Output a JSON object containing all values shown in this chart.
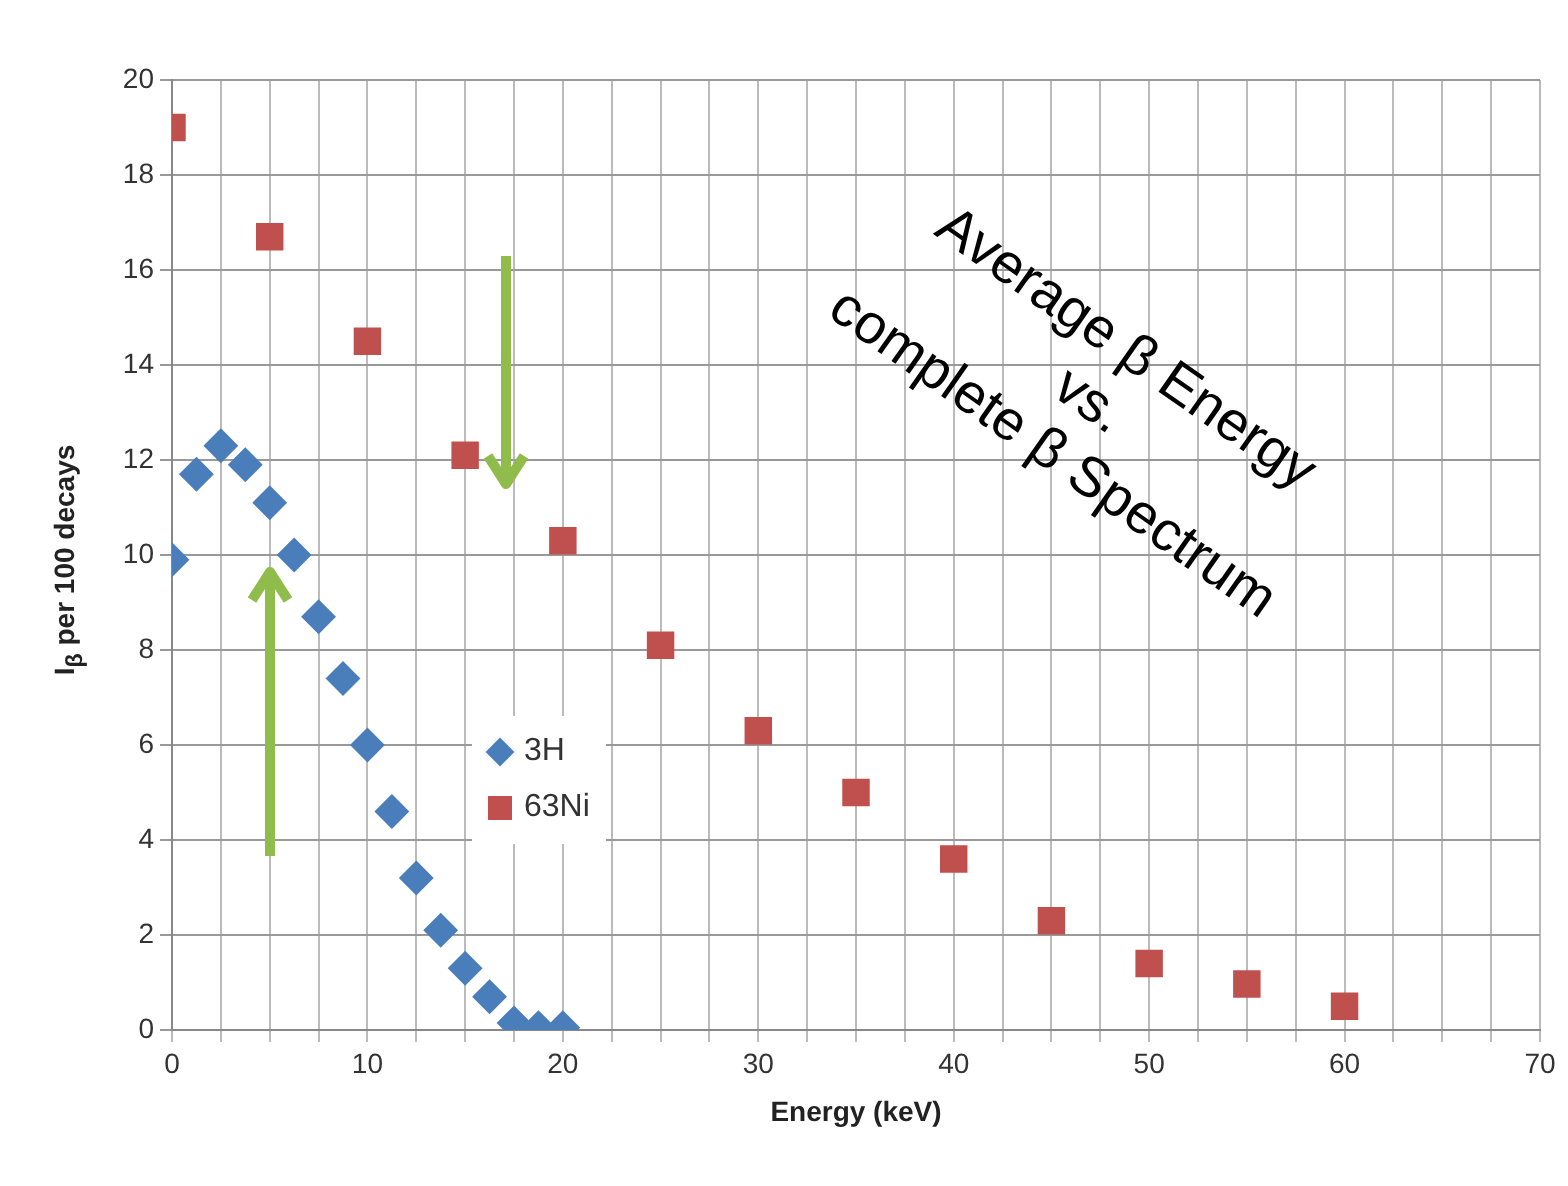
{
  "chart_data": {
    "type": "scatter",
    "xlabel": "Energy (keV)",
    "ylabel": "I$_{β}$ per 100 decays",
    "annotations": [
      "Average β Energy",
      "vs.",
      "complete β Spectrum"
    ],
    "xlim": [
      0,
      70
    ],
    "ylim": [
      0,
      20
    ],
    "xticks": [
      0,
      {
        "value": 2.5,
        "label": null
      },
      {
        "value": 5,
        "label": null
      },
      {
        "value": 7.5,
        "label": null
      },
      10,
      {
        "value": 12.5,
        "label": null
      },
      {
        "value": 15,
        "label": null
      },
      {
        "value": 17.5,
        "label": null
      },
      20,
      {
        "value": 22.5,
        "label": null
      },
      {
        "value": 25,
        "label": null
      },
      {
        "value": 27.5,
        "label": null
      },
      30,
      {
        "value": 32.5,
        "label": null
      },
      {
        "value": 35,
        "label": null
      },
      {
        "value": 37.5,
        "label": null
      },
      40,
      {
        "value": 42.5,
        "label": null
      },
      {
        "value": 45,
        "label": null
      },
      {
        "value": 47.5,
        "label": null
      },
      50,
      {
        "value": 52.5,
        "label": null
      },
      {
        "value": 55,
        "label": null
      },
      {
        "value": 57.5,
        "label": null
      },
      60,
      {
        "value": 62.5,
        "label": null
      },
      {
        "value": 65,
        "label": null
      },
      {
        "value": 67.5,
        "label": null
      },
      70
    ],
    "yticks": [
      0,
      2,
      4,
      6,
      8,
      10,
      12,
      14,
      16,
      18,
      20
    ],
    "grid": true,
    "legend": "left",
    "series": [
      {
        "name": "3H",
        "color": "#4a7ebb",
        "marker": "diamond",
        "x": [
          0,
          1.25,
          2.5,
          3.75,
          5,
          6.25,
          7.5,
          8.75,
          10,
          11.25,
          12.5,
          13.75,
          15,
          16.25,
          17.5,
          18.75,
          20
        ],
        "values": [
          9.9,
          11.7,
          12.3,
          11.9,
          11.1,
          10.0,
          8.7,
          7.4,
          6.0,
          4.6,
          3.2,
          2.1,
          1.3,
          0.7,
          0.15,
          0.05,
          0.05
        ]
      },
      {
        "name": "63Ni",
        "color": "#c0504d",
        "marker": "square",
        "x": [
          0,
          5,
          10,
          15,
          20,
          25,
          30,
          35,
          40,
          45,
          50,
          55,
          60
        ],
        "values": [
          19.0,
          16.7,
          14.5,
          12.1,
          10.3,
          8.1,
          6.3,
          5.0,
          3.6,
          2.3,
          1.4,
          0.97,
          0.5
        ]
      }
    ]
  }
}
